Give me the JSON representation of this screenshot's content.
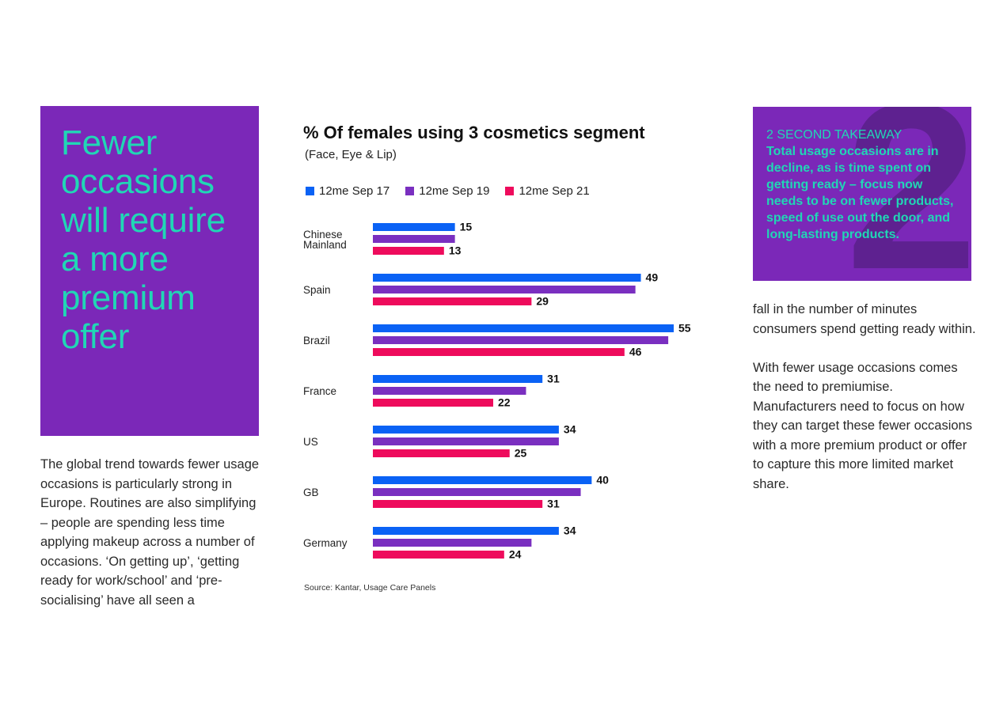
{
  "hero": {
    "title": "Fewer occasions will require a more premium offer"
  },
  "left_body": "The global trend towards fewer usage occasions is particularly strong in Europe. Routines are also simplifying – people are spending less time applying makeup across a number of occasions. ‘On getting up’, ‘getting ready for work/school’ and ‘pre-socialising’ have all seen a",
  "takeaway": {
    "number": "2",
    "heading": "2 SECOND TAKEAWAY",
    "text": "Total usage occasions are in decline, as is time spent on getting ready – focus now needs to be on fewer products, speed of use out the door, and long-lasting products."
  },
  "right_body": {
    "paragraph_1": "fall in the number of minutes consumers spend getting ready within.",
    "paragraph_2": "With fewer usage occasions comes the need to premiumise. Manufacturers need to focus on how they can target these fewer occasions with a more premium product or offer to capture this more limited market share."
  },
  "colors": {
    "purple": "#7b28b8",
    "teal": "#20d7b5",
    "blue": "#0a62f5",
    "violet": "#7a2fc0",
    "pink": "#ee0b5c"
  },
  "chart_data": {
    "type": "bar",
    "orientation": "horizontal",
    "title": "% Of females using 3 cosmetics segment",
    "subtitle": "(Face, Eye & Lip)",
    "source": "Source: Kantar, Usage Care Panels",
    "categories": [
      "Chinese Mainland",
      "Spain",
      "Brazil",
      "France",
      "US",
      "GB",
      "Germany"
    ],
    "series": [
      {
        "name": "12me Sep 17",
        "color": "#0a62f5",
        "values": [
          15,
          49,
          55,
          31,
          34,
          40,
          34
        ],
        "labeled": true
      },
      {
        "name": "12me Sep 19",
        "color": "#7a2fc0",
        "values": [
          15,
          48,
          54,
          28,
          34,
          38,
          29
        ],
        "labeled": false
      },
      {
        "name": "12me Sep 21",
        "color": "#ee0b5c",
        "values": [
          13,
          29,
          46,
          22,
          25,
          31,
          24
        ],
        "labeled": true
      }
    ],
    "xlim": [
      0,
      55
    ],
    "grid": false,
    "legend_position": "top"
  }
}
